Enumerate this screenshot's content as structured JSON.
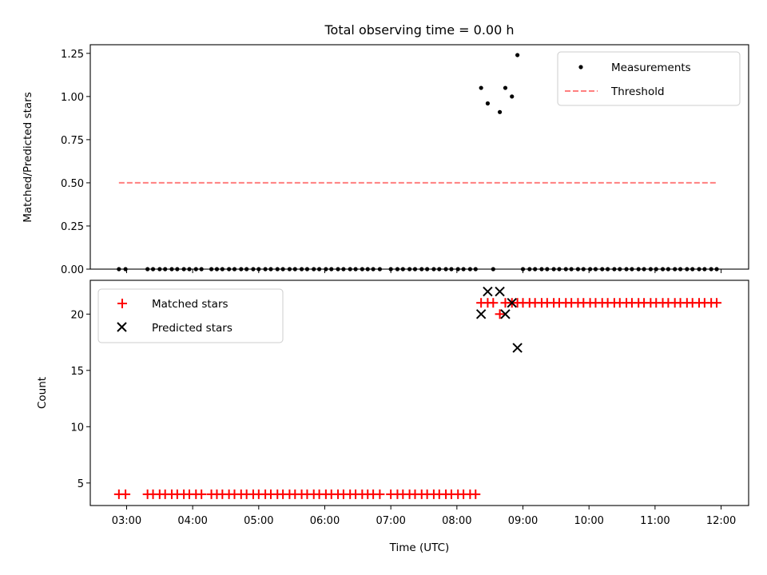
{
  "chart_data": [
    {
      "type": "scatter",
      "title": "Total observing time = 0.00 h",
      "xlabel": "",
      "ylabel": "Matched/Predicted stars",
      "ylim": [
        0,
        1.3
      ],
      "yticks": [
        "0.00",
        "0.25",
        "0.50",
        "0.75",
        "1.00",
        "1.25"
      ],
      "xlim": [
        "02:27",
        "12:25"
      ],
      "legend_position": "top-right",
      "series": [
        {
          "name": "Measurements",
          "color": "#000000",
          "marker": "dot",
          "points": [
            [
              "02:53",
              0
            ],
            [
              "02:59",
              0
            ],
            [
              "03:19",
              0
            ],
            [
              "03:24",
              0
            ],
            [
              "03:30",
              0
            ],
            [
              "03:35",
              0
            ],
            [
              "03:41",
              0
            ],
            [
              "03:46",
              0
            ],
            [
              "03:52",
              0
            ],
            [
              "03:57",
              0
            ],
            [
              "04:03",
              0
            ],
            [
              "04:08",
              0
            ],
            [
              "04:17",
              0
            ],
            [
              "04:22",
              0
            ],
            [
              "04:27",
              0
            ],
            [
              "04:33",
              0
            ],
            [
              "04:38",
              0
            ],
            [
              "04:44",
              0
            ],
            [
              "04:49",
              0
            ],
            [
              "04:55",
              0
            ],
            [
              "05:00",
              0
            ],
            [
              "05:06",
              0
            ],
            [
              "05:11",
              0
            ],
            [
              "05:17",
              0
            ],
            [
              "05:22",
              0
            ],
            [
              "05:28",
              0
            ],
            [
              "05:33",
              0
            ],
            [
              "05:39",
              0
            ],
            [
              "05:44",
              0
            ],
            [
              "05:50",
              0
            ],
            [
              "05:55",
              0
            ],
            [
              "06:01",
              0
            ],
            [
              "06:06",
              0
            ],
            [
              "06:12",
              0
            ],
            [
              "06:17",
              0
            ],
            [
              "06:23",
              0
            ],
            [
              "06:28",
              0
            ],
            [
              "06:34",
              0
            ],
            [
              "06:39",
              0
            ],
            [
              "06:44",
              0
            ],
            [
              "06:50",
              0
            ],
            [
              "07:00",
              0
            ],
            [
              "07:06",
              0
            ],
            [
              "07:11",
              0
            ],
            [
              "07:17",
              0
            ],
            [
              "07:22",
              0
            ],
            [
              "07:28",
              0
            ],
            [
              "07:33",
              0
            ],
            [
              "07:39",
              0
            ],
            [
              "07:44",
              0
            ],
            [
              "07:50",
              0
            ],
            [
              "07:55",
              0
            ],
            [
              "08:01",
              0
            ],
            [
              "08:06",
              0
            ],
            [
              "08:12",
              0
            ],
            [
              "08:17",
              0
            ],
            [
              "08:22",
              1.05
            ],
            [
              "08:28",
              0.96
            ],
            [
              "08:33",
              0
            ],
            [
              "08:39",
              0.91
            ],
            [
              "08:44",
              1.05
            ],
            [
              "08:50",
              1.0
            ],
            [
              "08:55",
              1.24
            ],
            [
              "09:00",
              0
            ],
            [
              "09:06",
              0
            ],
            [
              "09:11",
              0
            ],
            [
              "09:17",
              0
            ],
            [
              "09:22",
              0
            ],
            [
              "09:28",
              0
            ],
            [
              "09:33",
              0
            ],
            [
              "09:39",
              0
            ],
            [
              "09:44",
              0
            ],
            [
              "09:50",
              0
            ],
            [
              "09:55",
              0
            ],
            [
              "10:01",
              0
            ],
            [
              "10:06",
              0
            ],
            [
              "10:12",
              0
            ],
            [
              "10:17",
              0
            ],
            [
              "10:23",
              0
            ],
            [
              "10:28",
              0
            ],
            [
              "10:34",
              0
            ],
            [
              "10:39",
              0
            ],
            [
              "10:45",
              0
            ],
            [
              "10:50",
              0
            ],
            [
              "10:56",
              0
            ],
            [
              "11:01",
              0
            ],
            [
              "11:07",
              0
            ],
            [
              "11:12",
              0
            ],
            [
              "11:18",
              0
            ],
            [
              "11:23",
              0
            ],
            [
              "11:29",
              0
            ],
            [
              "11:34",
              0
            ],
            [
              "11:40",
              0
            ],
            [
              "11:45",
              0
            ],
            [
              "11:51",
              0
            ],
            [
              "11:56",
              0
            ]
          ]
        },
        {
          "name": "Threshold",
          "color": "#ff7f7f",
          "style": "dashed-line",
          "points": [
            [
              "02:53",
              0.5
            ],
            [
              "11:56",
              0.5
            ]
          ]
        }
      ]
    },
    {
      "type": "scatter",
      "title": "",
      "xlabel": "Time (UTC)",
      "ylabel": "Count",
      "ylim": [
        3.0,
        23.0
      ],
      "yticks": [
        "5",
        "10",
        "15",
        "20"
      ],
      "xlim": [
        "02:27",
        "12:25"
      ],
      "xticks": [
        "03:00",
        "04:00",
        "05:00",
        "06:00",
        "07:00",
        "08:00",
        "09:00",
        "10:00",
        "11:00",
        "12:00"
      ],
      "legend_position": "top-left",
      "series": [
        {
          "name": "Matched stars",
          "color": "#ff0000",
          "marker": "plus",
          "points": [
            [
              "02:53",
              4
            ],
            [
              "02:59",
              4
            ],
            [
              "03:19",
              4
            ],
            [
              "03:24",
              4
            ],
            [
              "03:30",
              4
            ],
            [
              "03:35",
              4
            ],
            [
              "03:41",
              4
            ],
            [
              "03:46",
              4
            ],
            [
              "03:52",
              4
            ],
            [
              "03:57",
              4
            ],
            [
              "04:03",
              4
            ],
            [
              "04:08",
              4
            ],
            [
              "04:17",
              4
            ],
            [
              "04:22",
              4
            ],
            [
              "04:27",
              4
            ],
            [
              "04:33",
              4
            ],
            [
              "04:38",
              4
            ],
            [
              "04:44",
              4
            ],
            [
              "04:49",
              4
            ],
            [
              "04:55",
              4
            ],
            [
              "05:00",
              4
            ],
            [
              "05:06",
              4
            ],
            [
              "05:11",
              4
            ],
            [
              "05:17",
              4
            ],
            [
              "05:22",
              4
            ],
            [
              "05:28",
              4
            ],
            [
              "05:33",
              4
            ],
            [
              "05:39",
              4
            ],
            [
              "05:44",
              4
            ],
            [
              "05:50",
              4
            ],
            [
              "05:55",
              4
            ],
            [
              "06:01",
              4
            ],
            [
              "06:06",
              4
            ],
            [
              "06:12",
              4
            ],
            [
              "06:17",
              4
            ],
            [
              "06:23",
              4
            ],
            [
              "06:28",
              4
            ],
            [
              "06:34",
              4
            ],
            [
              "06:39",
              4
            ],
            [
              "06:44",
              4
            ],
            [
              "06:50",
              4
            ],
            [
              "07:00",
              4
            ],
            [
              "07:06",
              4
            ],
            [
              "07:11",
              4
            ],
            [
              "07:17",
              4
            ],
            [
              "07:22",
              4
            ],
            [
              "07:28",
              4
            ],
            [
              "07:33",
              4
            ],
            [
              "07:39",
              4
            ],
            [
              "07:44",
              4
            ],
            [
              "07:50",
              4
            ],
            [
              "07:55",
              4
            ],
            [
              "08:01",
              4
            ],
            [
              "08:06",
              4
            ],
            [
              "08:12",
              4
            ],
            [
              "08:17",
              4
            ],
            [
              "08:22",
              21
            ],
            [
              "08:28",
              21
            ],
            [
              "08:33",
              21
            ],
            [
              "08:39",
              20
            ],
            [
              "08:44",
              21
            ],
            [
              "08:50",
              21
            ],
            [
              "08:55",
              21
            ],
            [
              "09:00",
              21
            ],
            [
              "09:06",
              21
            ],
            [
              "09:11",
              21
            ],
            [
              "09:17",
              21
            ],
            [
              "09:22",
              21
            ],
            [
              "09:28",
              21
            ],
            [
              "09:33",
              21
            ],
            [
              "09:39",
              21
            ],
            [
              "09:44",
              21
            ],
            [
              "09:50",
              21
            ],
            [
              "09:55",
              21
            ],
            [
              "10:01",
              21
            ],
            [
              "10:06",
              21
            ],
            [
              "10:12",
              21
            ],
            [
              "10:17",
              21
            ],
            [
              "10:23",
              21
            ],
            [
              "10:28",
              21
            ],
            [
              "10:34",
              21
            ],
            [
              "10:39",
              21
            ],
            [
              "10:45",
              21
            ],
            [
              "10:50",
              21
            ],
            [
              "10:56",
              21
            ],
            [
              "11:01",
              21
            ],
            [
              "11:07",
              21
            ],
            [
              "11:12",
              21
            ],
            [
              "11:18",
              21
            ],
            [
              "11:23",
              21
            ],
            [
              "11:29",
              21
            ],
            [
              "11:34",
              21
            ],
            [
              "11:40",
              21
            ],
            [
              "11:45",
              21
            ],
            [
              "11:51",
              21
            ],
            [
              "11:56",
              21
            ]
          ]
        },
        {
          "name": "Predicted stars",
          "color": "#000000",
          "marker": "x",
          "points": [
            [
              "08:22",
              20
            ],
            [
              "08:28",
              22
            ],
            [
              "08:39",
              22
            ],
            [
              "08:44",
              20
            ],
            [
              "08:50",
              21
            ],
            [
              "08:55",
              17
            ]
          ]
        }
      ]
    }
  ]
}
